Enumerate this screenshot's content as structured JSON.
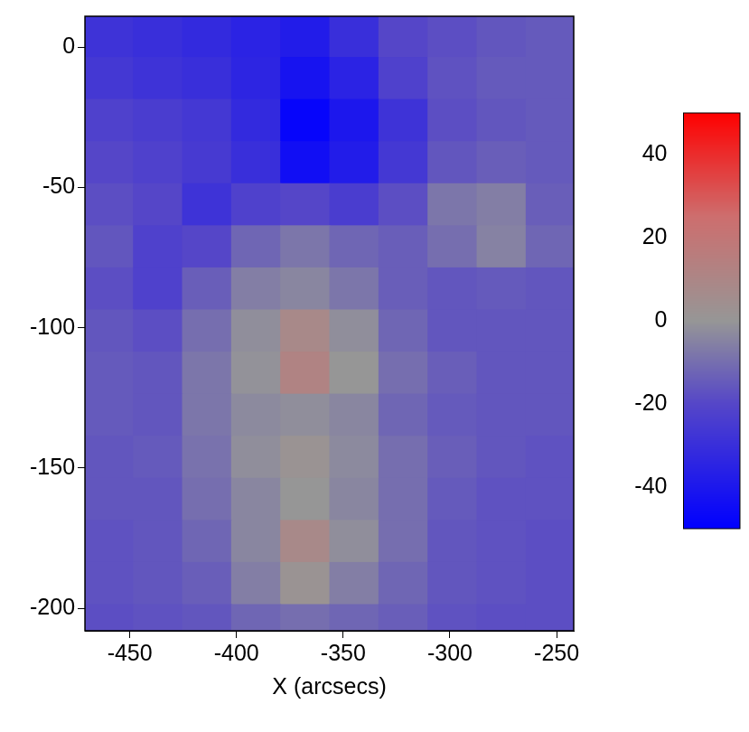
{
  "chart_data": {
    "type": "heatmap",
    "x_label": "X (arcsecs)",
    "xlim": [
      -471,
      -242
    ],
    "xticks": [
      -450,
      -400,
      -350,
      -300,
      -250
    ],
    "ylim": [
      -208,
      11
    ],
    "yticks": [
      -200,
      -150,
      -100,
      -50,
      0
    ],
    "grid": false,
    "x": [
      -460,
      -437,
      -414,
      -391,
      -368,
      -345,
      -322,
      -299,
      -276,
      -253
    ],
    "y": [
      4,
      -11,
      -26,
      -41,
      -56,
      -71,
      -86,
      -101,
      -116,
      -131,
      -146,
      -161,
      -176,
      -191,
      -206
    ],
    "values": [
      [
        -28,
        -30,
        -32,
        -35,
        -38,
        -30,
        -20,
        -18,
        -16,
        -15
      ],
      [
        -26,
        -28,
        -30,
        -34,
        -42,
        -35,
        -22,
        -17,
        -15,
        -15
      ],
      [
        -22,
        -24,
        -26,
        -32,
        -48,
        -40,
        -28,
        -18,
        -16,
        -15
      ],
      [
        -20,
        -22,
        -25,
        -30,
        -44,
        -38,
        -26,
        -16,
        -14,
        -15
      ],
      [
        -18,
        -20,
        -28,
        -22,
        -20,
        -24,
        -18,
        -8,
        -6,
        -14
      ],
      [
        -16,
        -22,
        -20,
        -12,
        -8,
        -12,
        -14,
        -10,
        -5,
        -12
      ],
      [
        -18,
        -22,
        -14,
        -6,
        -4,
        -8,
        -14,
        -16,
        -15,
        -16
      ],
      [
        -16,
        -18,
        -10,
        -2,
        8,
        -2,
        -12,
        -16,
        -16,
        -16
      ],
      [
        -15,
        -16,
        -8,
        -1,
        12,
        0,
        -10,
        -14,
        -16,
        -16
      ],
      [
        -15,
        -16,
        -8,
        -3,
        -2,
        -4,
        -12,
        -15,
        -16,
        -16
      ],
      [
        -16,
        -15,
        -9,
        -2,
        2,
        -3,
        -10,
        -14,
        -16,
        -17
      ],
      [
        -16,
        -16,
        -10,
        -4,
        0,
        -4,
        -10,
        -15,
        -17,
        -17
      ],
      [
        -17,
        -16,
        -12,
        -4,
        8,
        -2,
        -10,
        -16,
        -17,
        -18
      ],
      [
        -17,
        -16,
        -14,
        -6,
        2,
        -6,
        -12,
        -16,
        -17,
        -18
      ],
      [
        -18,
        -17,
        -16,
        -12,
        -10,
        -12,
        -14,
        -17,
        -18,
        -18
      ]
    ],
    "colorbar": {
      "range": [
        -50,
        50
      ],
      "ticks": [
        40,
        20,
        0,
        -20,
        -40
      ]
    }
  }
}
